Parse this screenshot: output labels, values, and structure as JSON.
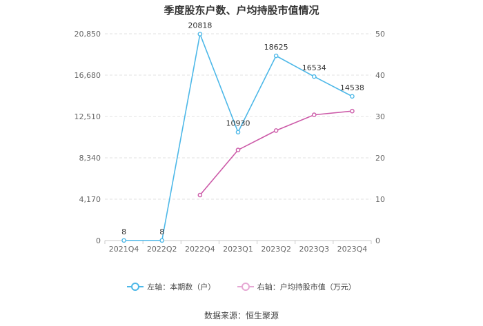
{
  "chart_data": {
    "type": "line",
    "title": "季度股东户数、户均持股市值情况",
    "categories": [
      "2021Q4",
      "2022Q2",
      "2022Q4",
      "2023Q1",
      "2023Q2",
      "2023Q3",
      "2023Q4"
    ],
    "y_left": {
      "ticks": [
        "0",
        "4,170",
        "8,340",
        "12,510",
        "16,680",
        "20,850"
      ],
      "range": [
        0,
        20850
      ]
    },
    "y_right": {
      "ticks": [
        "0",
        "10",
        "20",
        "30",
        "40",
        "50"
      ],
      "range": [
        0,
        50
      ]
    },
    "series": [
      {
        "name": "左轴：本期数（户）",
        "axis": "left",
        "color": "#4db8e8",
        "values": [
          8,
          8,
          20818,
          10930,
          18625,
          16534,
          14538
        ],
        "labels": [
          "8",
          "8",
          "20818",
          "10930",
          "18625",
          "16534",
          "14538"
        ]
      },
      {
        "name": "右轴：户均持股市值（万元）",
        "axis": "right",
        "color": "#cc5aa8",
        "values": [
          null,
          null,
          11.0,
          21.9,
          26.6,
          30.4,
          31.3
        ]
      }
    ],
    "grid": "horizontal-dashed",
    "legend_position": "bottom"
  },
  "source": "数据来源：恒生聚源"
}
